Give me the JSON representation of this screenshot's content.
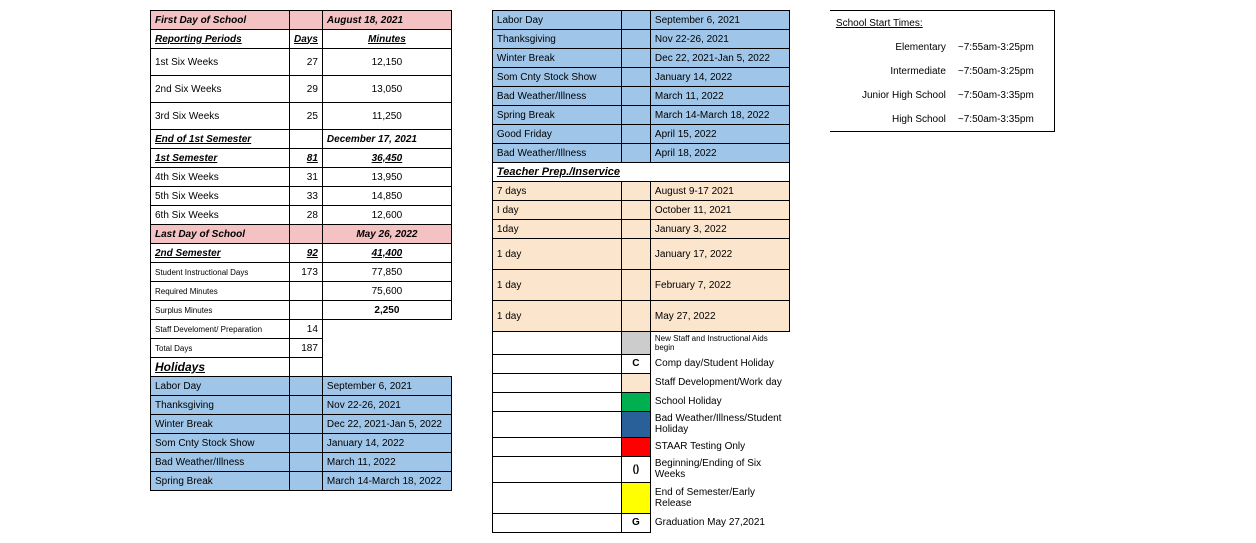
{
  "colors": {
    "pink": "#f4c2c2",
    "blue": "#9fc5e8",
    "peach": "#fce5cd",
    "gray": "#cccccc",
    "green": "#00b050",
    "blue_dark": "#2a6099",
    "red": "#ff0000",
    "yellow": "#ffff00",
    "border": "#000000",
    "bg": "#ffffff"
  },
  "left": {
    "firstDayLabel": "First Day of School",
    "firstDayDate": "August 18, 2021",
    "reporting": {
      "title": "Reporting Periods",
      "daysHdr": "Days",
      "minutesHdr": "Minutes"
    },
    "rows": [
      {
        "label": "1st Six Weeks",
        "days": "27",
        "minutes": "12,150"
      },
      {
        "label": "2nd Six Weeks",
        "days": "29",
        "minutes": "13,050"
      },
      {
        "label": "3rd Six Weeks",
        "days": "25",
        "minutes": "11,250"
      }
    ],
    "endSem1Label": "End of 1st Semester",
    "endSem1Date": "December 17, 2021",
    "sem1Label": "1st Semester",
    "sem1Days": "81",
    "sem1Min": "36,450",
    "rows2": [
      {
        "label": "4th Six Weeks",
        "days": "31",
        "minutes": "13,950"
      },
      {
        "label": "5th Six Weeks",
        "days": "33",
        "minutes": "14,850"
      },
      {
        "label": "6th Six Weeks",
        "days": "28",
        "minutes": "12,600"
      }
    ],
    "lastDayLabel": "Last Day of School",
    "lastDayDate": "May 26, 2022",
    "sem2Label": "2nd Semester",
    "sem2Days": "92",
    "sem2Min": "41,400",
    "sidLabel": "Student Instructional Days",
    "sidDays": "173",
    "sidMin": "77,850",
    "reqMinLabel": "Required Minutes",
    "reqMin": "75,600",
    "surplusLabel": "Surplus Minutes",
    "surplusMin": "2,250",
    "staffDevLabel": "Staff Develoment/ Preparation",
    "staffDevDays": "14",
    "totalDaysLabel": "Total Days",
    "totalDays": "187",
    "holidaysLabel": "Holidays",
    "holidays": [
      {
        "name": "Labor Day",
        "date": "September 6, 2021"
      },
      {
        "name": "Thanksgiving",
        "date": "Nov 22-26, 2021"
      },
      {
        "name": "Winter Break",
        "date": "Dec 22, 2021-Jan 5, 2022"
      },
      {
        "name": "Som Cnty Stock Show",
        "date": "January 14, 2022"
      },
      {
        "name": "Bad Weather/Illness",
        "date": "March 11, 2022"
      },
      {
        "name": "Spring Break",
        "date": "March 14-March 18, 2022"
      }
    ]
  },
  "middle": {
    "holidays2": [
      {
        "name": "Labor Day",
        "date": "September 6, 2021"
      },
      {
        "name": "Thanksgiving",
        "date": "Nov 22-26, 2021"
      },
      {
        "name": "Winter Break",
        "date": "Dec 22, 2021-Jan 5, 2022"
      },
      {
        "name": "Som Cnty Stock Show",
        "date": "January 14, 2022"
      },
      {
        "name": "Bad Weather/Illness",
        "date": "March 11, 2022"
      },
      {
        "name": "Spring Break",
        "date": "March 14-March 18, 2022"
      },
      {
        "name": "Good Friday",
        "date": "April 15, 2022"
      },
      {
        "name": "Bad Weather/Illness",
        "date": "April 18, 2022"
      }
    ],
    "teacherPrepLabel": "Teacher Prep./Inservice",
    "teacherPrep": [
      {
        "days": "7 days",
        "date": "August 9-17 2021"
      },
      {
        "days": "I day",
        "date": "October 11, 2021"
      },
      {
        "days": "1day",
        "date": "January 3, 2022"
      },
      {
        "days": "1 day",
        "date": "January 17, 2022",
        "tall": true
      },
      {
        "days": "1 day",
        "date": "February 7, 2022",
        "tall": true
      },
      {
        "days": "1 day",
        "date": "May 27, 2022",
        "tall": true
      }
    ],
    "legend": [
      {
        "color": "gray",
        "mark": "",
        "label": "New Staff and Instructional Aids begin",
        "tiny": true
      },
      {
        "color": "",
        "mark": "C",
        "label": "Comp day/Student Holiday"
      },
      {
        "color": "peach",
        "mark": "",
        "label": "Staff Development/Work day"
      },
      {
        "color": "green",
        "mark": "",
        "label": "School Holiday"
      },
      {
        "color": "blue2",
        "mark": "",
        "label": "Bad Weather/Illness/Student Holiday"
      },
      {
        "color": "red",
        "mark": "",
        "label": "STAAR Testing Only"
      },
      {
        "color": "",
        "mark": "()",
        "label": "Beginning/Ending of Six Weeks"
      },
      {
        "color": "yellow",
        "mark": "",
        "label": "End of Semester/Early Release",
        "tall": true
      },
      {
        "color": "",
        "mark": "G",
        "label": "Graduation May 27,2021"
      }
    ]
  },
  "right": {
    "title": "School Start Times:",
    "rows": [
      {
        "level": "Elementary",
        "time": "~7:55am-3:25pm"
      },
      {
        "level": "Intermediate",
        "time": "~7:50am-3:25pm"
      },
      {
        "level": "Junior High School",
        "time": "~7:50am-3:35pm"
      },
      {
        "level": "High School",
        "time": "~7:50am-3:35pm"
      }
    ]
  }
}
